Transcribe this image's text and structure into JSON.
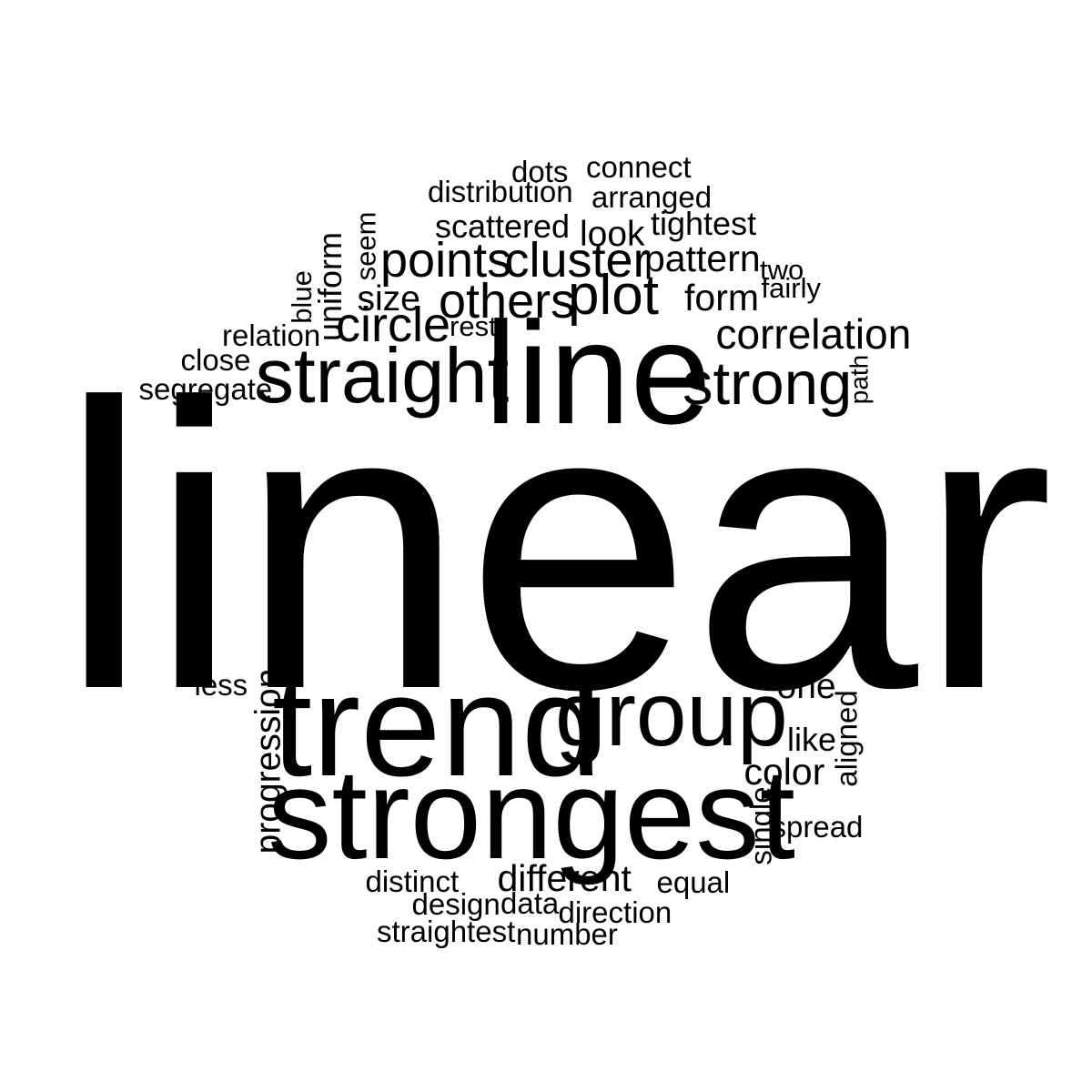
{
  "words": [
    {
      "text": "linear",
      "weight": 1.0,
      "orientation": "horizontal"
    },
    {
      "text": "line",
      "weight": 0.42,
      "orientation": "horizontal"
    },
    {
      "text": "trend",
      "weight": 0.4,
      "orientation": "horizontal"
    },
    {
      "text": "strongest",
      "weight": 0.35,
      "orientation": "horizontal"
    },
    {
      "text": "group",
      "weight": 0.26,
      "orientation": "horizontal"
    },
    {
      "text": "straight",
      "weight": 0.25,
      "orientation": "horizontal"
    },
    {
      "text": "strong",
      "weight": 0.2,
      "orientation": "horizontal"
    },
    {
      "text": "plot",
      "weight": 0.18,
      "orientation": "horizontal"
    },
    {
      "text": "points",
      "weight": 0.16,
      "orientation": "horizontal"
    },
    {
      "text": "cluster",
      "weight": 0.16,
      "orientation": "horizontal"
    },
    {
      "text": "others",
      "weight": 0.16,
      "orientation": "horizontal"
    },
    {
      "text": "circle",
      "weight": 0.16,
      "orientation": "horizontal"
    },
    {
      "text": "correlation",
      "weight": 0.14,
      "orientation": "horizontal"
    },
    {
      "text": "progression",
      "weight": 0.12,
      "orientation": "vertical"
    },
    {
      "text": "different",
      "weight": 0.12,
      "orientation": "horizontal"
    },
    {
      "text": "color",
      "weight": 0.12,
      "orientation": "horizontal"
    },
    {
      "text": "pattern",
      "weight": 0.12,
      "orientation": "horizontal"
    },
    {
      "text": "form",
      "weight": 0.12,
      "orientation": "horizontal"
    },
    {
      "text": "look",
      "weight": 0.12,
      "orientation": "horizontal"
    },
    {
      "text": "one",
      "weight": 0.11,
      "orientation": "horizontal"
    },
    {
      "text": "scattered",
      "weight": 0.11,
      "orientation": "horizontal"
    },
    {
      "text": "tightest",
      "weight": 0.11,
      "orientation": "horizontal"
    },
    {
      "text": "uniform",
      "weight": 0.11,
      "orientation": "vertical"
    },
    {
      "text": "size",
      "weight": 0.11,
      "orientation": "horizontal"
    },
    {
      "text": "aligned",
      "weight": 0.1,
      "orientation": "vertical"
    },
    {
      "text": "like",
      "weight": 0.1,
      "orientation": "horizontal"
    },
    {
      "text": "single",
      "weight": 0.1,
      "orientation": "vertical"
    },
    {
      "text": "direction",
      "weight": 0.1,
      "orientation": "horizontal"
    },
    {
      "text": "arranged",
      "weight": 0.1,
      "orientation": "horizontal"
    },
    {
      "text": "distribution",
      "weight": 0.1,
      "orientation": "horizontal"
    },
    {
      "text": "segregate",
      "weight": 0.1,
      "orientation": "horizontal"
    },
    {
      "text": "relation",
      "weight": 0.1,
      "orientation": "horizontal"
    },
    {
      "text": "dots",
      "weight": 0.1,
      "orientation": "horizontal"
    },
    {
      "text": "connect",
      "weight": 0.1,
      "orientation": "horizontal"
    },
    {
      "text": "seem",
      "weight": 0.1,
      "orientation": "vertical"
    },
    {
      "text": "blue",
      "weight": 0.1,
      "orientation": "vertical"
    },
    {
      "text": "close",
      "weight": 0.1,
      "orientation": "horizontal"
    },
    {
      "text": "rest",
      "weight": 0.09,
      "orientation": "horizontal"
    },
    {
      "text": "two",
      "weight": 0.09,
      "orientation": "horizontal"
    },
    {
      "text": "fairly",
      "weight": 0.09,
      "orientation": "horizontal"
    },
    {
      "text": "path",
      "weight": 0.09,
      "orientation": "vertical"
    },
    {
      "text": "less",
      "weight": 0.09,
      "orientation": "horizontal"
    },
    {
      "text": "spread",
      "weight": 0.09,
      "orientation": "horizontal"
    },
    {
      "text": "distinct",
      "weight": 0.09,
      "orientation": "horizontal"
    },
    {
      "text": "design",
      "weight": 0.09,
      "orientation": "horizontal"
    },
    {
      "text": "data",
      "weight": 0.09,
      "orientation": "horizontal"
    },
    {
      "text": "equal",
      "weight": 0.09,
      "orientation": "horizontal"
    },
    {
      "text": "straightest",
      "weight": 0.09,
      "orientation": "horizontal"
    },
    {
      "text": "number",
      "weight": 0.09,
      "orientation": "horizontal"
    }
  ],
  "colors": {
    "text": "#000000",
    "background": "#ffffff"
  }
}
